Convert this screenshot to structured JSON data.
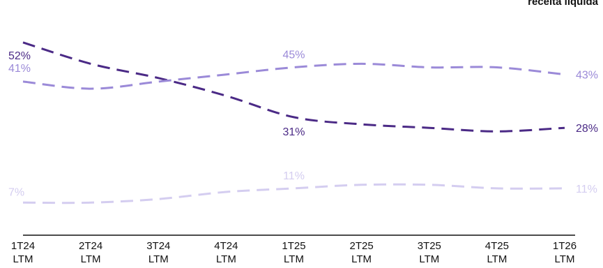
{
  "chart_data": {
    "type": "line",
    "title": "receita líquida",
    "categories": [
      "1T24\nLTM",
      "2T24\nLTM",
      "3T24\nLTM",
      "4T24\nLTM",
      "1T25\nLTM",
      "2T25\nLTM",
      "3T25\nLTM",
      "4T25\nLTM",
      "1T26\nLTM"
    ],
    "ylim": [
      0,
      60
    ],
    "series": [
      {
        "values": [
          52,
          46,
          42,
          37,
          31,
          29,
          28,
          27,
          28
        ],
        "color": "#4b2a86",
        "labels": {
          "0": "52%",
          "4": "31%",
          "8": "28%"
        }
      },
      {
        "values": [
          41,
          39,
          41,
          43,
          45,
          46,
          45,
          45,
          43
        ],
        "color": "#9b8ad8",
        "labels": {
          "0": "41%",
          "4": "45%",
          "8": "43%"
        }
      },
      {
        "values": [
          7,
          7,
          8,
          10,
          11,
          12,
          12,
          11,
          11
        ],
        "color": "#d4cdf0",
        "labels": {
          "0": "7%",
          "4": "11%",
          "8": "11%"
        }
      }
    ],
    "line_style": "dashed",
    "grid": false,
    "legend": "none"
  }
}
